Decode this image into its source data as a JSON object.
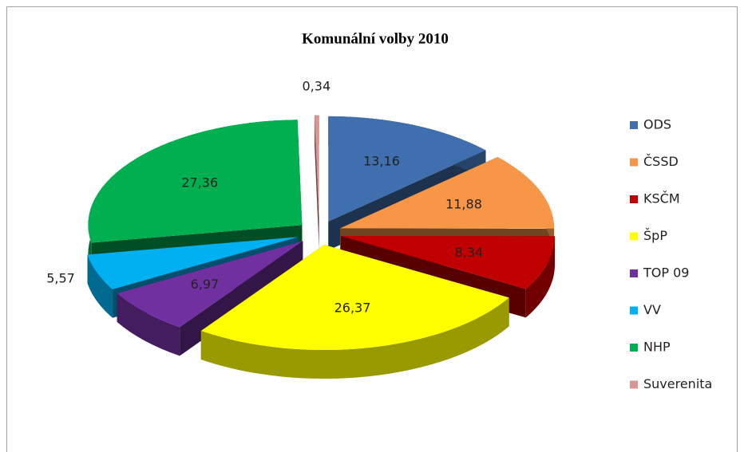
{
  "chart_data": {
    "type": "pie3d",
    "title": "Komunální volby 2010",
    "categories": [
      "ODS",
      "ČSSD",
      "KSČM",
      "ŠpP",
      "TOP 09",
      "VV",
      "NHP",
      "Suverenita"
    ],
    "values": [
      13.16,
      11.88,
      8.34,
      26.37,
      6.97,
      5.57,
      27.36,
      0.34
    ],
    "value_labels": [
      "13,16",
      "11,88",
      "8,34",
      "26,37",
      "6,97",
      "5,57",
      "27,36",
      "0,34"
    ],
    "colors": [
      "#3f6fae",
      "#f79646",
      "#c00000",
      "#ffff00",
      "#7030a0",
      "#00b0f0",
      "#00b050",
      "#d99694"
    ],
    "legend": "right"
  }
}
